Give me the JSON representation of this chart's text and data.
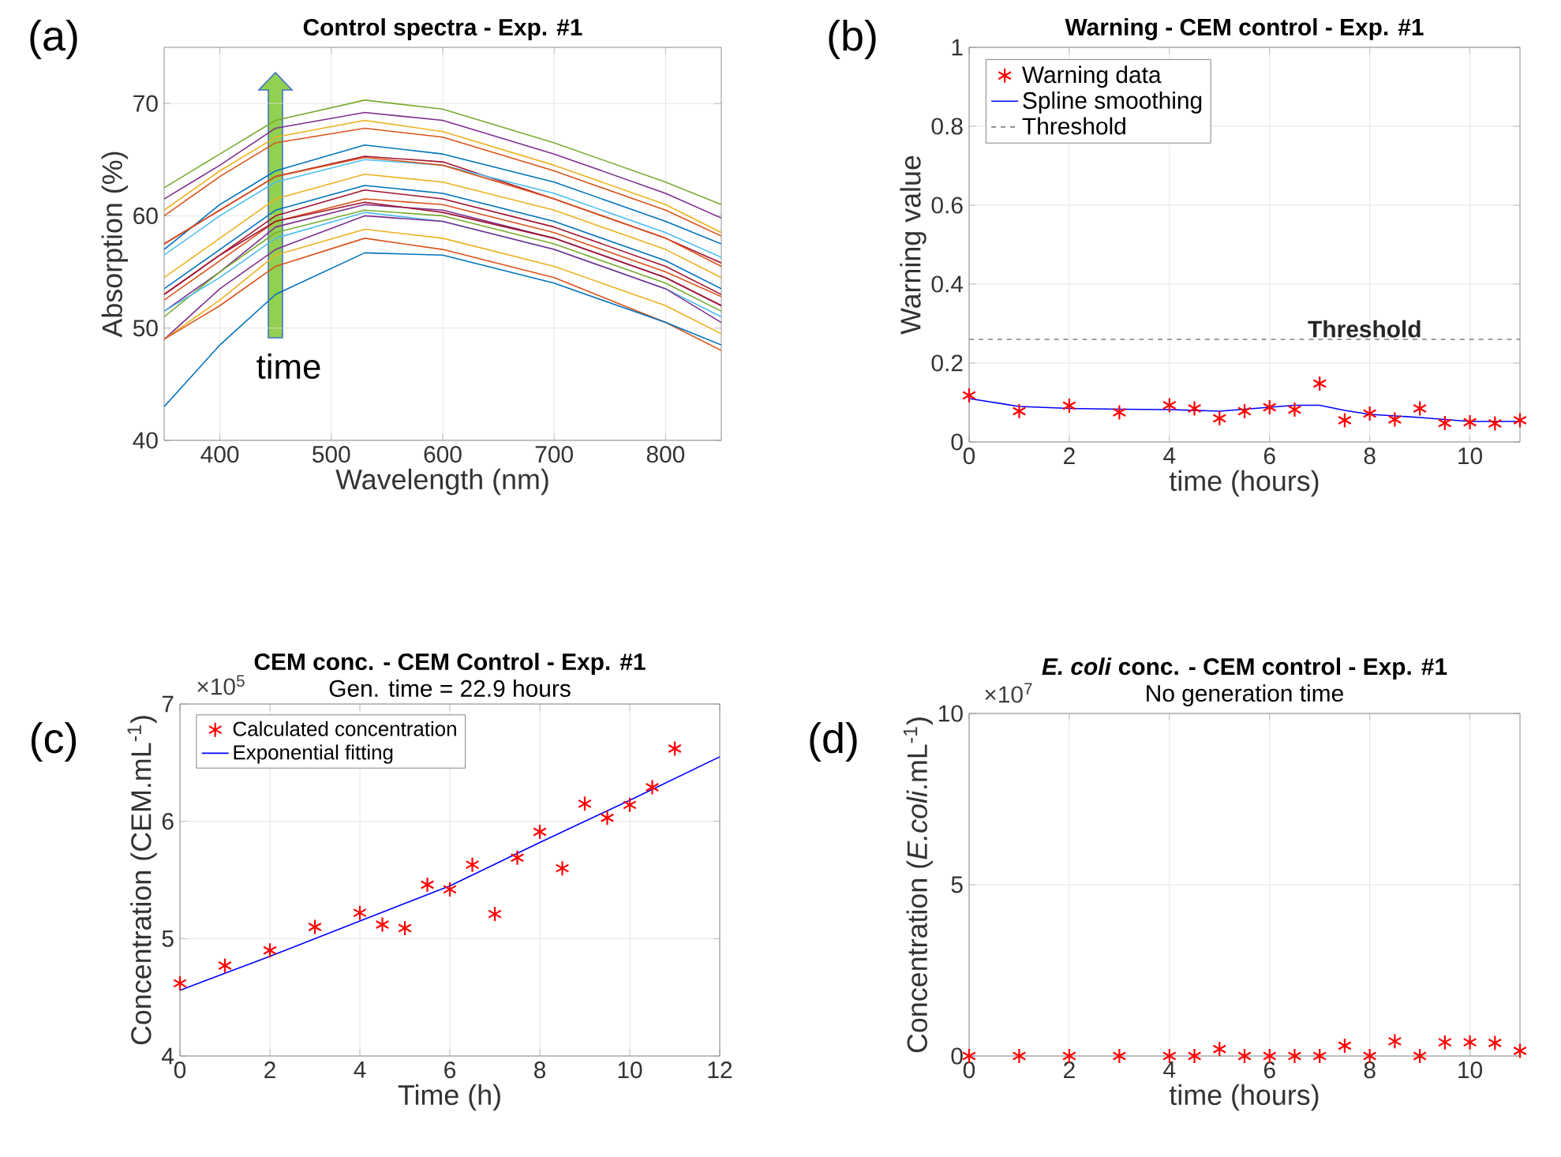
{
  "chart_data": [
    {
      "type": "line",
      "title": "Control spectra - Exp. #1",
      "xlabel": "Wavelength (nm)",
      "ylabel": "Absorption (%)",
      "xlim": [
        350,
        850
      ],
      "ylim": [
        40,
        75
      ],
      "xticks": [
        400,
        500,
        600,
        700,
        800
      ],
      "yticks": [
        40,
        50,
        60,
        70
      ],
      "grid": true,
      "annotations": [
        "(a)",
        "time"
      ],
      "x": [
        350,
        400,
        450,
        530,
        600,
        700,
        800,
        850
      ],
      "series": [
        {
          "color": "#77ac30",
          "values": [
            62.5,
            65.5,
            68.5,
            70.3,
            69.5,
            66.5,
            63,
            61
          ]
        },
        {
          "color": "#7e2f8e",
          "values": [
            61.5,
            64.5,
            67.8,
            69.2,
            68.5,
            65.5,
            62,
            59.8
          ]
        },
        {
          "color": "#edb120",
          "values": [
            60.5,
            64,
            67,
            68.5,
            67.5,
            64.5,
            61,
            58.5
          ]
        },
        {
          "color": "#d95319",
          "values": [
            60,
            63.5,
            66.5,
            67.8,
            67,
            64,
            60.5,
            58.2
          ]
        },
        {
          "color": "#0072bd",
          "values": [
            57,
            61,
            64,
            66.3,
            65.5,
            63,
            59.5,
            57.5
          ]
        },
        {
          "color": "#a2142f",
          "values": [
            57.5,
            60.5,
            63.5,
            65.3,
            64.8,
            61.5,
            58,
            55.8
          ]
        },
        {
          "color": "#4dbeee",
          "values": [
            56.5,
            60,
            63,
            65,
            64.5,
            62,
            58.5,
            56.3
          ]
        },
        {
          "color": "#d95319",
          "values": [
            57.5,
            60.5,
            63.5,
            65.2,
            64.5,
            61.5,
            58,
            55.5
          ]
        },
        {
          "color": "#edb120",
          "values": [
            54.5,
            58,
            61.5,
            63.7,
            63,
            60.5,
            57,
            54.5
          ]
        },
        {
          "color": "#0072bd",
          "values": [
            53.5,
            57,
            60.5,
            62.7,
            62,
            59.5,
            56,
            53.5
          ]
        },
        {
          "color": "#a2142f",
          "values": [
            53,
            56.5,
            60,
            62.3,
            61.5,
            59,
            55.5,
            53
          ]
        },
        {
          "color": "#d95319",
          "values": [
            52.5,
            56,
            59.5,
            61.5,
            61,
            58.5,
            55,
            52.8
          ]
        },
        {
          "color": "#7e2f8e",
          "values": [
            51.5,
            55,
            59,
            61,
            60.5,
            58,
            54.5,
            52
          ]
        },
        {
          "color": "#a2142f",
          "values": [
            53,
            56.5,
            59.5,
            61.2,
            60.3,
            58,
            54.5,
            52
          ]
        },
        {
          "color": "#77ac30",
          "values": [
            51,
            55,
            58.5,
            60.5,
            60,
            57.5,
            54,
            51.5
          ]
        },
        {
          "color": "#4dbeee",
          "values": [
            51.5,
            54.5,
            58,
            60.3,
            59.5,
            57,
            53.5,
            51
          ]
        },
        {
          "color": "#7e2f8e",
          "values": [
            49,
            53.5,
            57,
            60,
            59.5,
            57,
            53.5,
            50.5
          ]
        },
        {
          "color": "#edb120",
          "values": [
            49,
            52.5,
            56.5,
            58.8,
            58,
            55.5,
            52,
            49.5
          ]
        },
        {
          "color": "#d95319",
          "values": [
            49,
            52,
            55.5,
            58,
            57,
            54.5,
            50.5,
            48
          ]
        },
        {
          "color": "#0072bd",
          "values": [
            43,
            48.5,
            53,
            56.7,
            56.5,
            54,
            50.5,
            48.5
          ]
        }
      ]
    },
    {
      "type": "line",
      "title": "Warning - CEM control - Exp. #1",
      "xlabel": "time (hours)",
      "ylabel": "Warning value",
      "xlim": [
        0,
        11
      ],
      "ylim": [
        0,
        1
      ],
      "xticks": [
        0,
        2,
        4,
        6,
        8,
        10
      ],
      "yticks": [
        0,
        0.2,
        0.4,
        0.6,
        0.8,
        1
      ],
      "grid": true,
      "legend": "top left",
      "annotations": [
        "(b)",
        {
          "text": "Threshold",
          "x": 7.9,
          "y": 0.26
        }
      ],
      "series": [
        {
          "name": "Warning data",
          "type": "scatter",
          "marker": "cross",
          "color": "#ff0000",
          "x": [
            0,
            1,
            2,
            3,
            4,
            4.5,
            5,
            5.5,
            6,
            6.5,
            7,
            7.5,
            8,
            8.5,
            9,
            9.5,
            10,
            10.5,
            11
          ],
          "values": [
            0.118,
            0.078,
            0.092,
            0.075,
            0.093,
            0.085,
            0.06,
            0.078,
            0.088,
            0.082,
            0.148,
            0.055,
            0.072,
            0.057,
            0.085,
            0.048,
            0.05,
            0.047,
            0.055
          ]
        },
        {
          "name": "Spline smoothing",
          "type": "line",
          "color": "#0000ff",
          "x": [
            0,
            1,
            2,
            3,
            4,
            5,
            6,
            6.5,
            7,
            7.5,
            8,
            9,
            10,
            11
          ],
          "values": [
            0.11,
            0.09,
            0.085,
            0.083,
            0.082,
            0.078,
            0.088,
            0.093,
            0.093,
            0.08,
            0.07,
            0.062,
            0.052,
            0.052
          ]
        },
        {
          "name": "Threshold",
          "type": "line",
          "line_style": "dashed",
          "color": "#808080",
          "x": [
            0,
            11
          ],
          "values": [
            0.26,
            0.26
          ]
        }
      ]
    },
    {
      "type": "line",
      "title": "CEM conc. - CEM Control - Exp. #1",
      "subtitle": "Gen. time = 22.9 hours",
      "xlabel": "Time (h)",
      "ylabel": "Concentration (CEM.mL$^{-1}$)",
      "xlim": [
        0,
        12
      ],
      "ylim": [
        4,
        7
      ],
      "xticks": [
        0,
        2,
        4,
        6,
        8,
        10,
        12
      ],
      "yticks": [
        4,
        5,
        6,
        7
      ],
      "grid": true,
      "legend": "top left",
      "annotations": [
        "(c)",
        "×10$^{5}$"
      ],
      "series": [
        {
          "name": "Calculated concentration",
          "type": "scatter",
          "marker": "cross",
          "color": "#ff0000",
          "x": [
            0,
            1,
            2,
            3,
            4,
            4.5,
            5,
            5.5,
            6,
            6.5,
            7,
            7.5,
            8,
            8.5,
            9,
            9.5,
            10,
            10.5,
            11
          ],
          "values": [
            4.62,
            4.77,
            4.9,
            5.1,
            5.22,
            5.12,
            5.09,
            5.46,
            5.42,
            5.63,
            5.21,
            5.69,
            5.91,
            5.6,
            6.15,
            6.03,
            6.14,
            6.29,
            6.62
          ]
        },
        {
          "name": "Exponential fitting",
          "type": "line",
          "color": "#0000ff",
          "x": [
            0,
            2,
            4,
            6,
            8,
            10,
            12
          ],
          "values": [
            4.56,
            4.85,
            5.15,
            5.45,
            5.82,
            6.18,
            6.55
          ]
        }
      ]
    },
    {
      "type": "scatter",
      "title": "*E. coli* conc. - CEM control - Exp. #1",
      "subtitle": "No generation time",
      "xlabel": "time (hours)",
      "ylabel": "Concentration (*E.coli*.mL$^{-1}$)",
      "xlim": [
        0,
        11
      ],
      "ylim": [
        0,
        10
      ],
      "xticks": [
        0,
        2,
        4,
        6,
        8,
        10
      ],
      "yticks": [
        0,
        5,
        10
      ],
      "grid": true,
      "annotations": [
        "(d)",
        "×10$^{7}$"
      ],
      "series": [
        {
          "marker": "cross",
          "color": "#ff0000",
          "x": [
            0,
            1,
            2,
            3,
            4,
            4.5,
            5,
            5.5,
            6,
            6.5,
            7,
            7.5,
            8,
            8.5,
            9,
            9.5,
            10,
            10.5,
            11
          ],
          "values": [
            0,
            0,
            0,
            0,
            0,
            0,
            0.2,
            0,
            0,
            0,
            0,
            0.3,
            0,
            0.43,
            0,
            0.4,
            0.4,
            0.38,
            0.15
          ]
        }
      ]
    }
  ]
}
